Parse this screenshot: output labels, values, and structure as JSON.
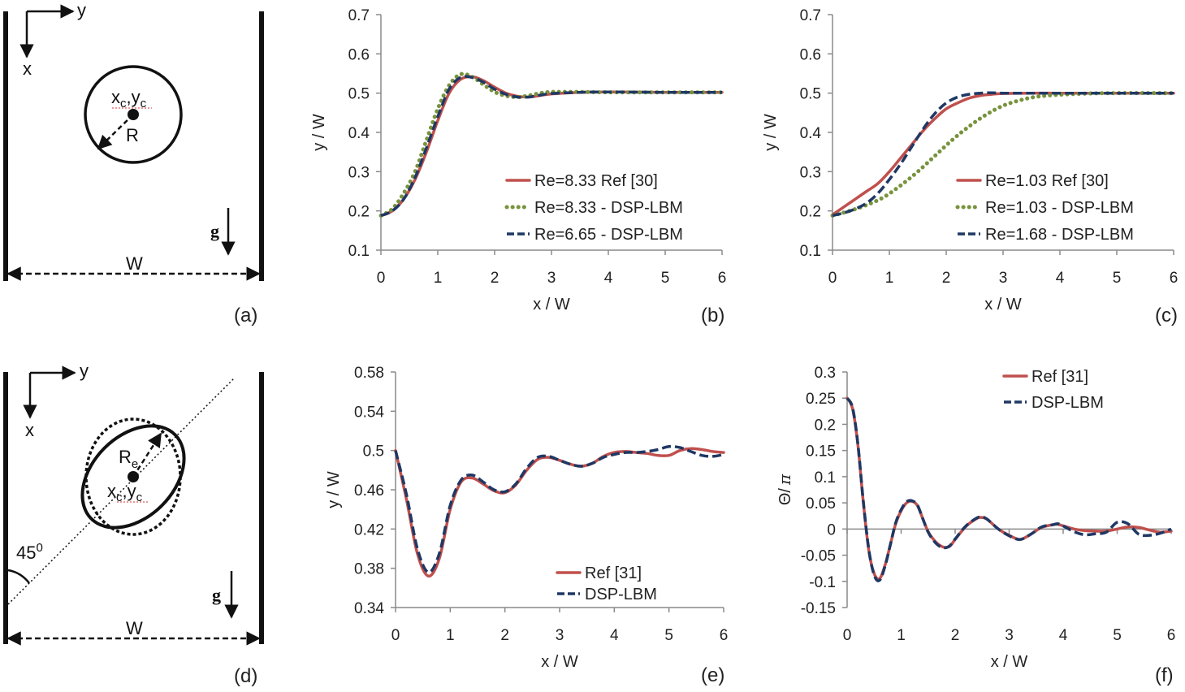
{
  "schematics": [
    {
      "panel_label": "(a)",
      "axis_y_label": "y",
      "axis_x_label": "x",
      "center_label": "xc,yc",
      "center_x": "x",
      "center_y": "y",
      "center_sub": "c",
      "radius_label": "R",
      "width_label": "W",
      "gravity_label": "g"
    },
    {
      "panel_label": "(d)",
      "axis_y_label": "y",
      "axis_x_label": "x",
      "center_label": "xc,yc",
      "center_x": "x",
      "center_y": "y",
      "center_sub": "c",
      "radius_label": "Re",
      "radius_main": "R",
      "radius_sub": "e",
      "angle_label": "45°",
      "angle_value": "45",
      "angle_sup": "0",
      "width_label": "W",
      "gravity_label": "g"
    }
  ],
  "colors": {
    "ref": "#c0504d",
    "green": "#77933c",
    "navy": "#1f3864",
    "axis": "#888888"
  },
  "chart_data": [
    {
      "id": "b",
      "panel_label": "(b)",
      "type": "line",
      "xlabel": "x / W",
      "ylabel": "y / W",
      "xlim": [
        0,
        6
      ],
      "ylim": [
        0.1,
        0.7
      ],
      "xticks": [
        "0",
        "1",
        "2",
        "3",
        "4",
        "5",
        "6"
      ],
      "yticks": [
        "0.1",
        "0.2",
        "0.3",
        "0.4",
        "0.5",
        "0.6",
        "0.7"
      ],
      "legend_position": "bottom-right",
      "series": [
        {
          "name": "Re=8.33 Ref [30]",
          "style": "solid",
          "color": "#c0504d",
          "x": [
            0,
            0.2,
            0.4,
            0.6,
            0.8,
            1.0,
            1.2,
            1.4,
            1.6,
            1.8,
            2.0,
            2.2,
            2.4,
            2.6,
            2.8,
            3.0,
            3.5,
            4.0,
            5.0,
            6.0
          ],
          "y": [
            0.188,
            0.2,
            0.23,
            0.28,
            0.35,
            0.43,
            0.5,
            0.535,
            0.542,
            0.532,
            0.515,
            0.5,
            0.492,
            0.49,
            0.494,
            0.498,
            0.502,
            0.503,
            0.502,
            0.502
          ]
        },
        {
          "name": "Re=8.33 - DSP-LBM",
          "style": "dotted",
          "color": "#77933c",
          "x": [
            0,
            0.2,
            0.4,
            0.6,
            0.8,
            1.0,
            1.2,
            1.4,
            1.6,
            1.8,
            2.0,
            2.2,
            2.4,
            2.6,
            2.8,
            3.0,
            3.5,
            4.0,
            5.0,
            6.0
          ],
          "y": [
            0.188,
            0.205,
            0.245,
            0.3,
            0.38,
            0.46,
            0.52,
            0.548,
            0.542,
            0.522,
            0.503,
            0.493,
            0.49,
            0.494,
            0.5,
            0.503,
            0.503,
            0.502,
            0.502,
            0.502
          ]
        },
        {
          "name": "Re=6.65 - DSP-LBM",
          "style": "dashed",
          "color": "#1f3864",
          "x": [
            0,
            0.2,
            0.4,
            0.6,
            0.8,
            1.0,
            1.2,
            1.4,
            1.6,
            1.8,
            2.0,
            2.2,
            2.4,
            2.6,
            2.8,
            3.0,
            3.5,
            4.0,
            5.0,
            6.0
          ],
          "y": [
            0.188,
            0.2,
            0.23,
            0.285,
            0.36,
            0.44,
            0.51,
            0.54,
            0.54,
            0.528,
            0.51,
            0.497,
            0.49,
            0.49,
            0.495,
            0.499,
            0.502,
            0.503,
            0.502,
            0.502
          ]
        }
      ]
    },
    {
      "id": "c",
      "panel_label": "(c)",
      "type": "line",
      "xlabel": "x / W",
      "ylabel": "y / W",
      "xlim": [
        0,
        6
      ],
      "ylim": [
        0.1,
        0.7
      ],
      "xticks": [
        "0",
        "1",
        "2",
        "3",
        "4",
        "5",
        "6"
      ],
      "yticks": [
        "0.1",
        "0.2",
        "0.3",
        "0.4",
        "0.5",
        "0.6",
        "0.7"
      ],
      "legend_position": "bottom-right",
      "series": [
        {
          "name": "Re=1.03 Ref [30]",
          "style": "solid",
          "color": "#c0504d",
          "x": [
            0,
            0.2,
            0.4,
            0.6,
            0.8,
            1.0,
            1.2,
            1.4,
            1.6,
            1.8,
            2.0,
            2.2,
            2.4,
            2.6,
            2.8,
            3.0,
            3.5,
            4.0,
            5.0,
            6.0
          ],
          "y": [
            0.19,
            0.21,
            0.23,
            0.25,
            0.27,
            0.3,
            0.335,
            0.37,
            0.405,
            0.435,
            0.46,
            0.475,
            0.487,
            0.494,
            0.497,
            0.499,
            0.5,
            0.5,
            0.5,
            0.5
          ]
        },
        {
          "name": "Re=1.03 - DSP-LBM",
          "style": "dotted",
          "color": "#77933c",
          "x": [
            0,
            0.3,
            0.6,
            0.9,
            1.2,
            1.5,
            1.8,
            2.1,
            2.4,
            2.7,
            3.0,
            3.3,
            3.6,
            4.0,
            4.5,
            5.0,
            6.0
          ],
          "y": [
            0.188,
            0.2,
            0.215,
            0.235,
            0.265,
            0.3,
            0.34,
            0.38,
            0.415,
            0.445,
            0.468,
            0.482,
            0.491,
            0.496,
            0.499,
            0.5,
            0.5
          ]
        },
        {
          "name": "Re=1.68 - DSP-LBM",
          "style": "dashed",
          "color": "#1f3864",
          "x": [
            0,
            0.2,
            0.4,
            0.6,
            0.8,
            1.0,
            1.2,
            1.4,
            1.6,
            1.8,
            2.0,
            2.2,
            2.4,
            2.6,
            2.8,
            3.0,
            3.5,
            4.0,
            5.0,
            6.0
          ],
          "y": [
            0.188,
            0.195,
            0.205,
            0.22,
            0.245,
            0.28,
            0.32,
            0.365,
            0.41,
            0.448,
            0.475,
            0.49,
            0.497,
            0.5,
            0.501,
            0.5,
            0.5,
            0.5,
            0.5,
            0.5
          ]
        }
      ]
    },
    {
      "id": "e",
      "panel_label": "(e)",
      "type": "line",
      "xlabel": "x / W",
      "ylabel": "y / W",
      "xlim": [
        0,
        6
      ],
      "ylim": [
        0.34,
        0.58
      ],
      "xticks": [
        "0",
        "1",
        "2",
        "3",
        "4",
        "5",
        "6"
      ],
      "yticks": [
        "0.34",
        "0.38",
        "0.42",
        "0.46",
        "0.5",
        "0.54",
        "0.58"
      ],
      "legend_position": "bottom-right",
      "series": [
        {
          "name": "Ref [31]",
          "style": "solid",
          "color": "#c0504d",
          "x": [
            0,
            0.2,
            0.4,
            0.6,
            0.8,
            1.0,
            1.2,
            1.4,
            1.6,
            1.8,
            2.0,
            2.2,
            2.4,
            2.6,
            2.8,
            3.0,
            3.2,
            3.4,
            3.6,
            3.8,
            4.0,
            4.2,
            4.4,
            4.6,
            4.8,
            5.0,
            5.2,
            5.4,
            5.6,
            5.8,
            6.0
          ],
          "y": [
            0.5,
            0.45,
            0.395,
            0.372,
            0.39,
            0.44,
            0.468,
            0.472,
            0.466,
            0.459,
            0.457,
            0.465,
            0.48,
            0.491,
            0.493,
            0.49,
            0.486,
            0.484,
            0.487,
            0.494,
            0.498,
            0.499,
            0.498,
            0.497,
            0.495,
            0.495,
            0.5,
            0.502,
            0.501,
            0.499,
            0.498
          ]
        },
        {
          "name": "DSP-LBM",
          "style": "dashed",
          "color": "#1f3864",
          "x": [
            0,
            0.2,
            0.4,
            0.6,
            0.8,
            1.0,
            1.2,
            1.4,
            1.6,
            1.8,
            2.0,
            2.2,
            2.4,
            2.6,
            2.8,
            3.0,
            3.2,
            3.4,
            3.6,
            3.8,
            4.0,
            4.2,
            4.4,
            4.6,
            4.8,
            5.0,
            5.2,
            5.4,
            5.6,
            5.8,
            6.0
          ],
          "y": [
            0.5,
            0.455,
            0.4,
            0.376,
            0.395,
            0.444,
            0.47,
            0.475,
            0.468,
            0.46,
            0.458,
            0.466,
            0.482,
            0.493,
            0.494,
            0.49,
            0.486,
            0.484,
            0.487,
            0.493,
            0.496,
            0.498,
            0.498,
            0.499,
            0.501,
            0.504,
            0.503,
            0.499,
            0.495,
            0.494,
            0.496
          ]
        }
      ]
    },
    {
      "id": "f",
      "panel_label": "(f)",
      "type": "line",
      "xlabel": "x / W",
      "ylabel": "Θ/ π",
      "ylabel_main": "Θ/",
      "ylabel_pi": "π",
      "xlim": [
        0,
        6
      ],
      "ylim": [
        -0.15,
        0.3
      ],
      "xticks": [
        "0",
        "1",
        "2",
        "3",
        "4",
        "5",
        "6"
      ],
      "yticks": [
        "-0.15",
        "-0.1",
        "-0.05",
        "0",
        "0.05",
        "0.1",
        "0.15",
        "0.2",
        "0.25",
        "0.3"
      ],
      "legend_position": "top-right",
      "series": [
        {
          "name": "Ref [31]",
          "style": "solid",
          "color": "#c0504d",
          "x": [
            0,
            0.1,
            0.2,
            0.3,
            0.4,
            0.5,
            0.6,
            0.7,
            0.8,
            0.9,
            1.0,
            1.1,
            1.2,
            1.3,
            1.4,
            1.5,
            1.6,
            1.7,
            1.8,
            1.9,
            2.0,
            2.2,
            2.4,
            2.5,
            2.6,
            2.8,
            3.0,
            3.2,
            3.4,
            3.6,
            3.8,
            3.9,
            4.0,
            4.2,
            4.4,
            4.6,
            4.8,
            5.0,
            5.2,
            5.4,
            5.6,
            5.8,
            6.0
          ],
          "y": [
            0.25,
            0.23,
            0.16,
            0.05,
            -0.04,
            -0.085,
            -0.095,
            -0.07,
            -0.03,
            0.01,
            0.035,
            0.05,
            0.053,
            0.045,
            0.02,
            -0.005,
            -0.02,
            -0.03,
            -0.035,
            -0.033,
            -0.02,
            0.005,
            0.02,
            0.022,
            0.018,
            0.0,
            -0.012,
            -0.02,
            -0.01,
            0.003,
            0.008,
            0.009,
            0.006,
            0.0,
            -0.003,
            -0.004,
            -0.004,
            0.0,
            0.004,
            0.003,
            -0.002,
            -0.006,
            -0.004
          ]
        },
        {
          "name": "DSP-LBM",
          "style": "dashed",
          "color": "#1f3864",
          "x": [
            0,
            0.1,
            0.2,
            0.3,
            0.4,
            0.5,
            0.6,
            0.7,
            0.8,
            0.9,
            1.0,
            1.1,
            1.2,
            1.3,
            1.4,
            1.5,
            1.6,
            1.7,
            1.8,
            1.9,
            2.0,
            2.2,
            2.4,
            2.5,
            2.6,
            2.8,
            3.0,
            3.2,
            3.4,
            3.6,
            3.8,
            3.9,
            4.0,
            4.2,
            4.4,
            4.6,
            4.8,
            5.0,
            5.2,
            5.4,
            5.6,
            5.8,
            6.0
          ],
          "y": [
            0.25,
            0.232,
            0.162,
            0.052,
            -0.038,
            -0.088,
            -0.098,
            -0.072,
            -0.03,
            0.012,
            0.037,
            0.052,
            0.054,
            0.046,
            0.02,
            -0.006,
            -0.022,
            -0.032,
            -0.036,
            -0.032,
            -0.019,
            0.006,
            0.021,
            0.023,
            0.018,
            0.0,
            -0.013,
            -0.02,
            -0.01,
            0.004,
            0.008,
            0.01,
            0.006,
            -0.005,
            -0.011,
            -0.009,
            -0.006,
            0.013,
            0.01,
            -0.01,
            -0.012,
            -0.008,
            0.0
          ]
        }
      ]
    }
  ]
}
